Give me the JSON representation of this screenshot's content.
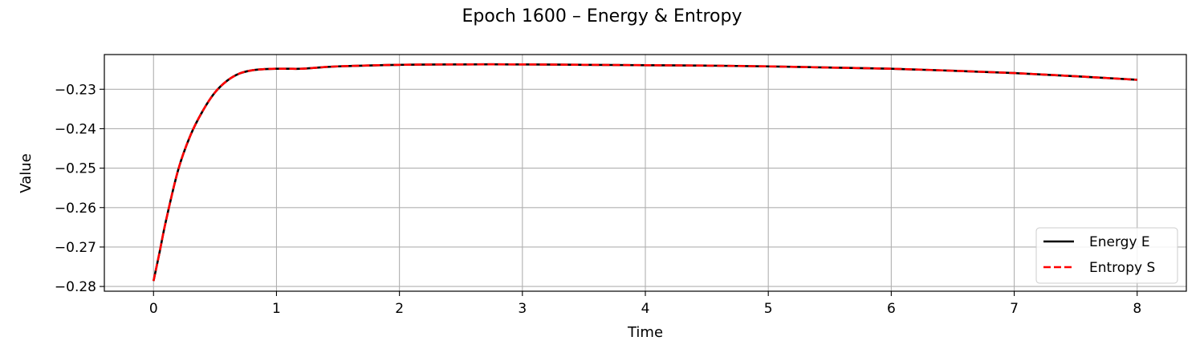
{
  "chart_data": {
    "type": "line",
    "title": "Epoch 1600 – Energy & Entropy",
    "xlabel": "Time",
    "ylabel": "Value",
    "xlim": [
      -0.4,
      8.4
    ],
    "ylim": [
      -0.2812,
      -0.2212
    ],
    "xticks": [
      0,
      1,
      2,
      3,
      4,
      5,
      6,
      7,
      8
    ],
    "xtick_labels": [
      "0",
      "1",
      "2",
      "3",
      "4",
      "5",
      "6",
      "7",
      "8"
    ],
    "yticks": [
      -0.28,
      -0.27,
      -0.26,
      -0.25,
      -0.24,
      -0.23
    ],
    "ytick_labels": [
      "−0.28",
      "−0.27",
      "−0.26",
      "−0.25",
      "−0.24",
      "−0.23"
    ],
    "grid": true,
    "legend_position": "bottom-right",
    "series": [
      {
        "name": "Energy E",
        "color": "#000000",
        "style": "solid",
        "x": [
          0,
          0.05,
          0.1,
          0.2,
          0.3,
          0.4,
          0.5,
          0.6,
          0.7,
          0.8,
          0.9,
          1.0,
          1.1,
          1.2,
          1.3,
          1.5,
          2.0,
          2.5,
          3.0,
          3.5,
          4.0,
          4.5,
          5.0,
          5.5,
          6.0,
          6.5,
          7.0,
          7.5,
          8.0
        ],
        "y": [
          -0.2786,
          -0.2712,
          -0.2635,
          -0.2505,
          -0.2417,
          -0.2355,
          -0.2308,
          -0.2278,
          -0.226,
          -0.2252,
          -0.2249,
          -0.2248,
          -0.2248,
          -0.2248,
          -0.2246,
          -0.2242,
          -0.2238,
          -0.2237,
          -0.2237,
          -0.2238,
          -0.2239,
          -0.224,
          -0.2242,
          -0.2245,
          -0.2248,
          -0.2253,
          -0.2259,
          -0.2267,
          -0.2276
        ]
      },
      {
        "name": "Entropy S",
        "color": "#ff0000",
        "style": "dashed",
        "x": [
          0,
          0.05,
          0.1,
          0.2,
          0.3,
          0.4,
          0.5,
          0.6,
          0.7,
          0.8,
          0.9,
          1.0,
          1.1,
          1.2,
          1.3,
          1.5,
          2.0,
          2.5,
          3.0,
          3.5,
          4.0,
          4.5,
          5.0,
          5.5,
          6.0,
          6.5,
          7.0,
          7.5,
          8.0
        ],
        "y": [
          -0.2786,
          -0.2712,
          -0.2635,
          -0.2505,
          -0.2417,
          -0.2355,
          -0.2308,
          -0.2278,
          -0.226,
          -0.2252,
          -0.2249,
          -0.2248,
          -0.2248,
          -0.2248,
          -0.2246,
          -0.2242,
          -0.2238,
          -0.2237,
          -0.2237,
          -0.2238,
          -0.2239,
          -0.224,
          -0.2242,
          -0.2245,
          -0.2248,
          -0.2253,
          -0.2259,
          -0.2267,
          -0.2276
        ]
      }
    ]
  }
}
